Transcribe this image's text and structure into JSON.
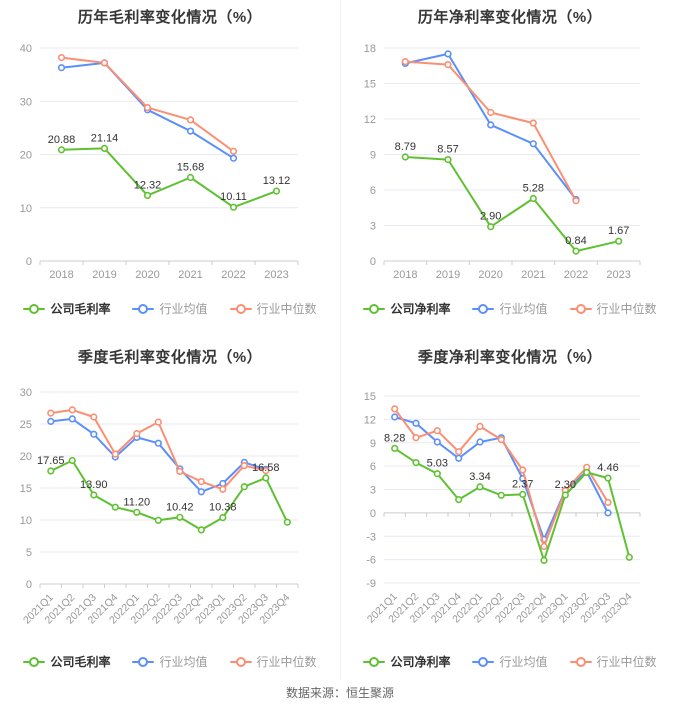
{
  "page": {
    "source": "数据来源：恒生聚源"
  },
  "colors": {
    "company": "#5fc131",
    "industry_mean": "#5b8ff9",
    "industry_median": "#fa8f73",
    "title_text": "#363636",
    "axis_text": "#999999",
    "point_label_text": "#333333",
    "grid_line": "#e9e9f2",
    "axis_line": "#cccccc"
  },
  "chart_data": [
    {
      "type": "line",
      "title": "历年毛利率变化情况（%）",
      "ylim": [
        0,
        40
      ],
      "yticks": [
        0,
        10,
        20,
        30,
        40
      ],
      "x_rotate": 0,
      "grid": true,
      "legend_position": "bottom",
      "categories": [
        "2018",
        "2019",
        "2020",
        "2021",
        "2022",
        "2023"
      ],
      "series": [
        {
          "name": "公司毛利率",
          "color": "company",
          "values": [
            20.88,
            21.14,
            12.32,
            15.68,
            10.11,
            13.12
          ],
          "point_labels": [
            "20.88",
            "21.14",
            "12.32",
            "15.68",
            "10.11",
            "13.12"
          ]
        },
        {
          "name": "行业均值",
          "color": "industry_mean",
          "values": [
            36.3,
            37.2,
            28.4,
            24.4,
            19.3,
            null
          ]
        },
        {
          "name": "行业中位数",
          "color": "industry_median",
          "values": [
            38.2,
            37.2,
            28.8,
            26.5,
            20.6,
            null
          ]
        }
      ]
    },
    {
      "type": "line",
      "title": "历年净利率变化情况（%）",
      "ylim": [
        0,
        18
      ],
      "yticks": [
        0,
        3,
        6,
        9,
        12,
        15,
        18
      ],
      "x_rotate": 0,
      "grid": true,
      "legend_position": "bottom",
      "categories": [
        "2018",
        "2019",
        "2020",
        "2021",
        "2022",
        "2023"
      ],
      "series": [
        {
          "name": "公司净利率",
          "color": "company",
          "values": [
            8.79,
            8.57,
            2.9,
            5.28,
            0.84,
            1.67
          ],
          "point_labels": [
            "8.79",
            "8.57",
            "2.90",
            "5.28",
            "0.84",
            "1.67"
          ]
        },
        {
          "name": "行业均值",
          "color": "industry_mean",
          "values": [
            16.7,
            17.5,
            11.5,
            9.9,
            5.2,
            null
          ]
        },
        {
          "name": "行业中位数",
          "color": "industry_median",
          "values": [
            16.85,
            16.6,
            12.55,
            11.65,
            5.1,
            null
          ]
        }
      ]
    },
    {
      "type": "line",
      "title": "季度毛利率变化情况（%）",
      "ylim": [
        0,
        30
      ],
      "yticks": [
        0,
        5,
        10,
        15,
        20,
        25,
        30
      ],
      "x_rotate": 45,
      "grid": true,
      "legend_position": "bottom",
      "categories": [
        "2021Q1",
        "2021Q2",
        "2021Q3",
        "2021Q4",
        "2022Q1",
        "2022Q2",
        "2022Q3",
        "2022Q4",
        "2023Q1",
        "2023Q2",
        "2023Q3",
        "2023Q4"
      ],
      "series": [
        {
          "name": "公司毛利率",
          "color": "company",
          "values": [
            17.65,
            19.3,
            13.9,
            12.0,
            11.2,
            9.95,
            10.42,
            8.45,
            10.38,
            15.2,
            16.58,
            9.65
          ],
          "point_labels": [
            "17.65",
            null,
            "13.90",
            null,
            "11.20",
            null,
            "10.42",
            null,
            "10.38",
            null,
            "16.58",
            null
          ]
        },
        {
          "name": "行业均值",
          "color": "industry_mean",
          "values": [
            25.4,
            25.8,
            23.4,
            19.85,
            22.9,
            22.0,
            18.0,
            14.4,
            15.7,
            19.0,
            17.9,
            null
          ]
        },
        {
          "name": "行业中位数",
          "color": "industry_median",
          "values": [
            26.7,
            27.2,
            26.1,
            20.3,
            23.5,
            25.3,
            17.6,
            16.0,
            14.8,
            18.5,
            17.7,
            null
          ]
        }
      ]
    },
    {
      "type": "line",
      "title": "季度净利率变化情况（%）",
      "ylim": [
        -9,
        15
      ],
      "yticks": [
        -9,
        -6,
        -3,
        0,
        3,
        6,
        9,
        12,
        15
      ],
      "x_rotate": 45,
      "grid": true,
      "legend_position": "bottom",
      "categories": [
        "2021Q1",
        "2021Q2",
        "2021Q3",
        "2021Q4",
        "2022Q1",
        "2022Q2",
        "2022Q3",
        "2022Q4",
        "2023Q1",
        "2023Q2",
        "2023Q3",
        "2023Q4"
      ],
      "series": [
        {
          "name": "公司净利率",
          "color": "company",
          "values": [
            8.28,
            6.45,
            5.03,
            1.7,
            3.34,
            2.25,
            2.37,
            -6.1,
            2.3,
            5.2,
            4.46,
            -5.7
          ],
          "point_labels": [
            "8.28",
            null,
            "5.03",
            null,
            "3.34",
            null,
            "2.37",
            null,
            "2.30",
            null,
            "4.46",
            null
          ]
        },
        {
          "name": "行业均值",
          "color": "industry_mean",
          "values": [
            12.3,
            11.5,
            9.1,
            7.0,
            9.1,
            9.65,
            4.4,
            -3.4,
            2.9,
            5.3,
            0.0,
            null
          ]
        },
        {
          "name": "行业中位数",
          "color": "industry_median",
          "values": [
            13.35,
            9.65,
            10.55,
            7.85,
            11.1,
            9.4,
            5.5,
            -4.3,
            2.85,
            5.85,
            1.35,
            null
          ]
        }
      ]
    }
  ]
}
